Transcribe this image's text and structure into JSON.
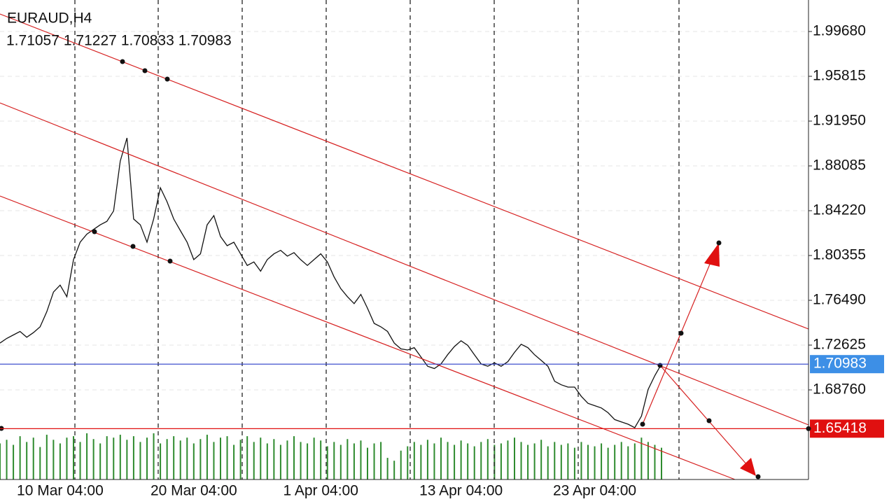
{
  "chart_data": {
    "type": "line",
    "title": "EURAUD,H4",
    "last_bar": [
      1.71057,
      1.71227,
      1.70833,
      1.70983
    ],
    "current_price": 1.70983,
    "level": 1.65418,
    "ylim": [
      1.6103,
      2.02398
    ],
    "yticks": [
      {
        "value": 1.9968,
        "label": "1.99680"
      },
      1.95815,
      {
        "value": 1.9195,
        "label": "1.91950"
      },
      1.88085,
      {
        "value": 1.8422,
        "label": "1.84220"
      },
      1.80355,
      {
        "value": 1.7649,
        "label": "1.76490"
      },
      1.72625,
      {
        "value": 1.6876,
        "label": "1.68760"
      }
    ],
    "grid": true,
    "categories": [
      null,
      null,
      null,
      null,
      null,
      null,
      null,
      null,
      null,
      "10 Mar 04:00",
      null,
      null,
      null,
      null,
      null,
      null,
      null,
      null,
      null,
      null,
      null,
      null,
      null,
      null,
      null,
      null,
      null,
      null,
      null,
      "20 Mar 04:00",
      null,
      null,
      null,
      null,
      null,
      null,
      null,
      null,
      null,
      null,
      null,
      null,
      null,
      null,
      null,
      null,
      null,
      null,
      "1 Apr 04:00",
      null,
      null,
      null,
      null,
      null,
      null,
      null,
      null,
      null,
      null,
      null,
      null,
      null,
      null,
      null,
      null,
      null,
      null,
      null,
      null,
      "13 Apr 04:00",
      null,
      null,
      null,
      null,
      null,
      null,
      null,
      null,
      null,
      null,
      null,
      null,
      null,
      null,
      null,
      null,
      null,
      null,
      null,
      "23 Apr 04:00",
      null,
      null,
      null,
      null,
      null,
      null,
      null,
      null,
      null,
      null
    ],
    "series": [
      {
        "name": "EURAUD",
        "color": "#111111",
        "values": [
          1.728,
          1.732,
          1.735,
          1.738,
          1.733,
          1.737,
          1.742,
          1.755,
          1.772,
          1.778,
          1.768,
          1.8,
          1.815,
          1.822,
          1.826,
          1.83,
          1.833,
          1.842,
          1.885,
          1.905,
          1.835,
          1.83,
          1.815,
          1.835,
          1.862,
          1.85,
          1.835,
          1.825,
          1.815,
          1.8,
          1.805,
          1.83,
          1.838,
          1.82,
          1.812,
          1.815,
          1.805,
          1.795,
          1.798,
          1.79,
          1.8,
          1.805,
          1.808,
          1.803,
          1.806,
          1.8,
          1.795,
          1.8,
          1.805,
          1.798,
          1.785,
          1.775,
          1.768,
          1.762,
          1.77,
          1.758,
          1.745,
          1.742,
          1.738,
          1.728,
          1.723,
          1.722,
          1.724,
          1.716,
          1.708,
          1.706,
          1.71,
          1.718,
          1.725,
          1.73,
          1.726,
          1.718,
          1.71,
          1.708,
          1.711,
          1.708,
          1.712,
          1.72,
          1.727,
          1.724,
          1.718,
          1.713,
          1.708,
          1.695,
          1.692,
          1.69,
          1.69,
          1.682,
          1.676,
          1.674,
          1.672,
          1.668,
          1.662,
          1.66,
          1.658,
          1.655,
          1.665,
          1.688,
          1.7,
          1.71
        ]
      },
      {
        "name": "Volume",
        "color": "#2e8b2e",
        "values": [
          50,
          55,
          48,
          60,
          52,
          58,
          45,
          62,
          55,
          50,
          58,
          60,
          52,
          64,
          56,
          50,
          60,
          58,
          62,
          55,
          60,
          52,
          58,
          64,
          50,
          56,
          60,
          54,
          58,
          50,
          56,
          62,
          52,
          58,
          60,
          48,
          55,
          60,
          52,
          58,
          50,
          56,
          48,
          54,
          60,
          52,
          50,
          58,
          54,
          46,
          52,
          48,
          56,
          50,
          54,
          44,
          50,
          52,
          30,
          26,
          40,
          46,
          52,
          48,
          55,
          50,
          58,
          52,
          48,
          54,
          50,
          46,
          52,
          56,
          48,
          50,
          54,
          58,
          52,
          48,
          50,
          55,
          46,
          52,
          48,
          50,
          44,
          52,
          48,
          46,
          50,
          44,
          48,
          52,
          46,
          50,
          58,
          52,
          48,
          44
        ]
      }
    ]
  }
}
